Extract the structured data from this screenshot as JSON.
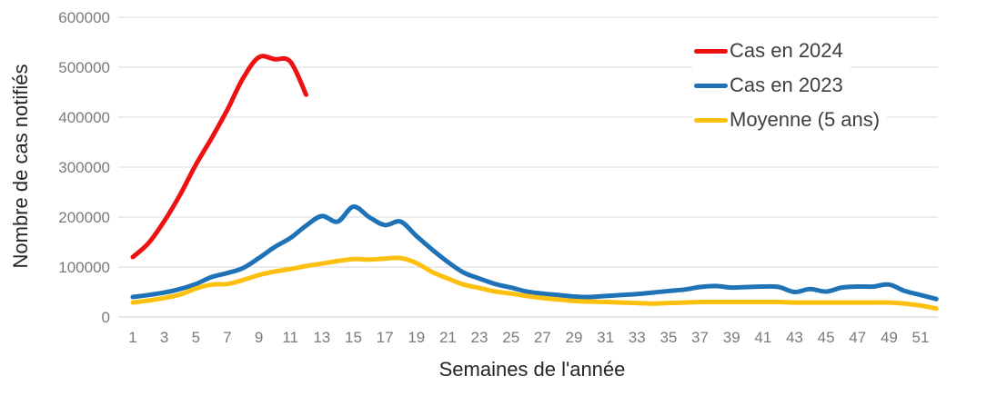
{
  "chart_data": {
    "type": "line",
    "xlabel": "Semaines de l'année",
    "ylabel": "Nombre de cas notifiés",
    "ylim": [
      0,
      600000
    ],
    "yticks": [
      0,
      100000,
      200000,
      300000,
      400000,
      500000,
      600000
    ],
    "xticks": [
      1,
      3,
      5,
      7,
      9,
      11,
      13,
      15,
      17,
      19,
      21,
      23,
      25,
      27,
      29,
      31,
      33,
      35,
      37,
      39,
      41,
      43,
      45,
      47,
      49,
      51
    ],
    "x_unit": "week",
    "grid": true,
    "legend_position": "top-right",
    "series": [
      {
        "name": "Cas en 2024",
        "color": "#ee1111",
        "start_week": 1,
        "values": [
          120000,
          148000,
          192000,
          245000,
          305000,
          358000,
          415000,
          478000,
          520000,
          516000,
          511000,
          445000
        ]
      },
      {
        "name": "Cas en 2023",
        "color": "#1f72b5",
        "start_week": 1,
        "values": [
          40000,
          44000,
          49000,
          56000,
          66000,
          80000,
          88000,
          98000,
          118000,
          140000,
          158000,
          183000,
          202000,
          191000,
          221000,
          200000,
          184000,
          191000,
          162000,
          135000,
          110000,
          89000,
          77000,
          66000,
          59000,
          51000,
          47000,
          44000,
          41000,
          40000,
          42000,
          44000,
          46000,
          49000,
          52000,
          55000,
          60000,
          62000,
          59000,
          60000,
          61000,
          60000,
          50000,
          56000,
          51000,
          59000,
          61000,
          61000,
          65000,
          52000,
          44000,
          36000
        ]
      },
      {
        "name": "Moyenne (5 ans)",
        "color": "#fdc00f",
        "start_week": 1,
        "values": [
          29000,
          33000,
          38000,
          45000,
          57000,
          65000,
          66000,
          74000,
          84000,
          91000,
          96000,
          102000,
          107000,
          112000,
          116000,
          115000,
          117000,
          118000,
          108000,
          90000,
          77000,
          65000,
          58000,
          51000,
          47000,
          42000,
          38000,
          35000,
          32000,
          31000,
          30000,
          29000,
          28000,
          27000,
          28000,
          29000,
          30000,
          30000,
          30000,
          30000,
          30000,
          30000,
          29000,
          29000,
          29000,
          29000,
          29000,
          29000,
          29000,
          27000,
          23000,
          17000
        ]
      }
    ]
  }
}
